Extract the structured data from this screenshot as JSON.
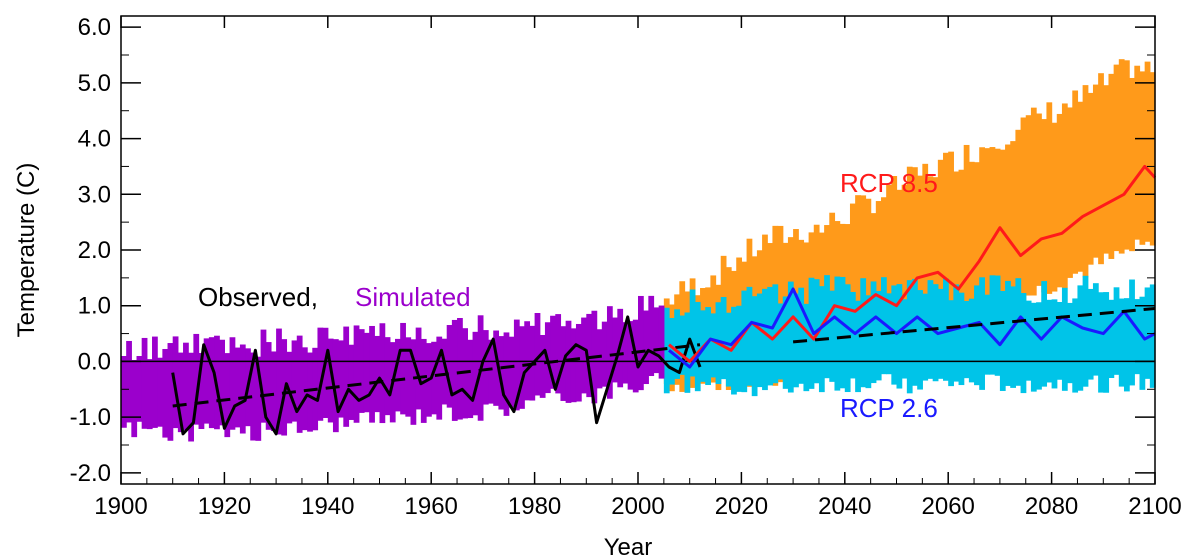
{
  "chart_data": {
    "type": "line",
    "title": "",
    "xlabel": "Year",
    "ylabel": "Temperature (C)",
    "xlim": [
      1900,
      2100
    ],
    "ylim": [
      -2.2,
      6.2
    ],
    "x_ticks": [
      1900,
      1920,
      1940,
      1960,
      1980,
      2000,
      2020,
      2040,
      2060,
      2080,
      2100
    ],
    "x_tick_labels": [
      "1900",
      "1920",
      "1940",
      "1960",
      "1980",
      "2000",
      "2020",
      "2040",
      "2060",
      "2080",
      "2100"
    ],
    "y_ticks": [
      -2,
      -1,
      0,
      1,
      2,
      3,
      4,
      5,
      6
    ],
    "y_tick_labels": [
      "-2.0",
      "-1.0",
      "0.0",
      "1.0",
      "2.0",
      "3.0",
      "4.0",
      "5.0",
      "6.0"
    ],
    "reference_line_y": 0,
    "annotations": {
      "observed": "Observed,",
      "simulated": "Simulated",
      "rcp85": "RCP 8.5",
      "rcp26": "RCP 2.6"
    },
    "colors": {
      "observed": "#000000",
      "simulated": "#9b00cc",
      "rcp85_range": "#ff9a1a",
      "rcp85_line": "#ff1a1a",
      "rcp26_range": "#00c4e8",
      "rcp26_line": "#1a1aff",
      "trend": "#000000"
    },
    "series": [
      {
        "name": "Simulated",
        "kind": "band",
        "x": [
          1900,
          1905,
          1910,
          1915,
          1920,
          1925,
          1930,
          1935,
          1940,
          1945,
          1950,
          1955,
          1960,
          1965,
          1970,
          1975,
          1980,
          1985,
          1990,
          1995,
          2000,
          2005
        ],
        "lower": [
          -1.2,
          -1.2,
          -1.3,
          -1.3,
          -1.2,
          -1.3,
          -1.2,
          -1.2,
          -1.1,
          -1.1,
          -1.0,
          -1.0,
          -0.9,
          -0.9,
          -0.9,
          -0.8,
          -0.7,
          -0.6,
          -0.6,
          -0.5,
          -0.4,
          -0.3
        ],
        "upper": [
          0.2,
          0.2,
          0.3,
          0.3,
          0.3,
          0.3,
          0.4,
          0.4,
          0.4,
          0.4,
          0.5,
          0.5,
          0.5,
          0.6,
          0.6,
          0.6,
          0.7,
          0.7,
          0.8,
          0.8,
          1.0,
          1.1
        ]
      },
      {
        "name": "Observed",
        "kind": "line",
        "x": [
          1910,
          1912,
          1914,
          1916,
          1918,
          1920,
          1922,
          1924,
          1926,
          1928,
          1930,
          1932,
          1934,
          1936,
          1938,
          1940,
          1942,
          1944,
          1946,
          1948,
          1950,
          1952,
          1954,
          1956,
          1958,
          1960,
          1962,
          1964,
          1966,
          1968,
          1970,
          1972,
          1974,
          1976,
          1978,
          1980,
          1982,
          1984,
          1986,
          1988,
          1990,
          1992,
          1994,
          1996,
          1998,
          2000,
          2002,
          2004,
          2006,
          2008,
          2010,
          2012
        ],
        "y": [
          -0.2,
          -1.3,
          -1.1,
          0.3,
          -0.2,
          -1.2,
          -0.8,
          -0.7,
          0.2,
          -1.0,
          -1.3,
          -0.4,
          -0.9,
          -0.6,
          -0.7,
          0.2,
          -0.9,
          -0.5,
          -0.7,
          -0.6,
          -0.3,
          -0.6,
          0.2,
          0.2,
          -0.4,
          -0.3,
          0.2,
          -0.6,
          -0.5,
          -0.7,
          0.0,
          0.4,
          -0.6,
          -0.9,
          -0.2,
          0.0,
          0.2,
          -0.5,
          0.1,
          0.3,
          0.2,
          -1.1,
          -0.5,
          0.1,
          0.8,
          -0.1,
          0.2,
          0.1,
          -0.1,
          -0.2,
          0.4,
          -0.1
        ]
      },
      {
        "name": "Observed trend",
        "kind": "dashed",
        "x": [
          1910,
          2012
        ],
        "y": [
          -0.8,
          0.3
        ]
      },
      {
        "name": "RCP 8.5",
        "kind": "band",
        "x": [
          2005,
          2015,
          2025,
          2035,
          2045,
          2055,
          2065,
          2075,
          2085,
          2095,
          2100
        ],
        "lower": [
          -0.4,
          -0.4,
          -0.3,
          -0.2,
          0.1,
          0.4,
          0.8,
          1.2,
          1.6,
          2.0,
          2.1
        ],
        "upper": [
          1.1,
          1.6,
          2.2,
          2.4,
          2.9,
          3.4,
          3.8,
          4.3,
          4.7,
          5.3,
          5.2
        ]
      },
      {
        "name": "RCP 8.5",
        "kind": "line",
        "x": [
          2006,
          2010,
          2014,
          2018,
          2022,
          2026,
          2030,
          2034,
          2038,
          2042,
          2046,
          2050,
          2054,
          2058,
          2062,
          2066,
          2070,
          2074,
          2078,
          2082,
          2086,
          2090,
          2094,
          2098,
          2100
        ],
        "y": [
          0.3,
          0.0,
          0.4,
          0.2,
          0.7,
          0.4,
          0.8,
          0.4,
          1.0,
          0.9,
          1.2,
          1.0,
          1.5,
          1.6,
          1.3,
          1.8,
          2.4,
          1.9,
          2.2,
          2.3,
          2.6,
          2.8,
          3.0,
          3.5,
          3.3
        ]
      },
      {
        "name": "RCP 2.6",
        "kind": "band",
        "x": [
          2005,
          2015,
          2025,
          2035,
          2045,
          2055,
          2065,
          2075,
          2085,
          2095,
          2100
        ],
        "lower": [
          -0.4,
          -0.4,
          -0.5,
          -0.4,
          -0.4,
          -0.4,
          -0.4,
          -0.4,
          -0.4,
          -0.4,
          -0.4
        ],
        "upper": [
          1.0,
          1.1,
          1.2,
          1.3,
          1.3,
          1.3,
          1.3,
          1.3,
          1.3,
          1.3,
          1.3
        ]
      },
      {
        "name": "RCP 2.6",
        "kind": "line",
        "x": [
          2006,
          2010,
          2014,
          2018,
          2022,
          2026,
          2030,
          2034,
          2038,
          2042,
          2046,
          2050,
          2054,
          2058,
          2062,
          2066,
          2070,
          2074,
          2078,
          2082,
          2086,
          2090,
          2094,
          2098,
          2100
        ],
        "y": [
          0.2,
          -0.1,
          0.4,
          0.3,
          0.7,
          0.6,
          1.3,
          0.5,
          0.8,
          0.5,
          0.8,
          0.5,
          0.8,
          0.5,
          0.6,
          0.7,
          0.3,
          0.8,
          0.4,
          0.8,
          0.6,
          0.5,
          0.9,
          0.4,
          0.5
        ]
      },
      {
        "name": "RCP 2.6 trend",
        "kind": "dashed",
        "x": [
          2030,
          2100
        ],
        "y": [
          0.35,
          0.95
        ]
      }
    ]
  }
}
